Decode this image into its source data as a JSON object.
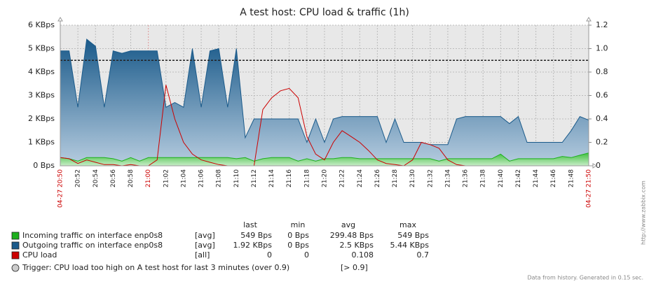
{
  "chart_data": {
    "type": "line",
    "title": "A test host: CPU load & traffic (1h)",
    "x": [
      "20:50",
      "20:51",
      "20:52",
      "20:53",
      "20:54",
      "20:55",
      "20:56",
      "20:57",
      "20:58",
      "20:59",
      "21:00",
      "21:01",
      "21:02",
      "21:03",
      "21:04",
      "21:05",
      "21:06",
      "21:07",
      "21:08",
      "21:09",
      "21:10",
      "21:11",
      "21:12",
      "21:13",
      "21:14",
      "21:15",
      "21:16",
      "21:17",
      "21:18",
      "21:19",
      "21:20",
      "21:21",
      "21:22",
      "21:23",
      "21:24",
      "21:25",
      "21:26",
      "21:27",
      "21:28",
      "21:29",
      "21:30",
      "21:31",
      "21:32",
      "21:33",
      "21:34",
      "21:35",
      "21:36",
      "21:37",
      "21:38",
      "21:39",
      "21:40",
      "21:41",
      "21:42",
      "21:43",
      "21:44",
      "21:45",
      "21:46",
      "21:47",
      "21:48",
      "21:49",
      "21:50"
    ],
    "xlim": [
      "20:50",
      "21:50"
    ],
    "xticks": [
      {
        "value": "20:50",
        "label": "04-27 20:50"
      },
      "20:52",
      "20:54",
      "20:56",
      "20:58",
      "21:00",
      "21:02",
      "21:04",
      "21:06",
      "21:08",
      "21:10",
      "21:12",
      "21:14",
      "21:16",
      "21:18",
      "21:20",
      "21:22",
      "21:24",
      "21:26",
      "21:28",
      "21:30",
      "21:32",
      "21:34",
      "21:36",
      "21:38",
      "21:40",
      "21:42",
      "21:44",
      "21:46",
      "21:48",
      {
        "value": "21:50",
        "label": "04-27 21:50"
      }
    ],
    "ylim": [
      0,
      6
    ],
    "yticks": [
      {
        "value": 0,
        "label": "0 Bps"
      },
      {
        "value": 1,
        "label": "1 KBps"
      },
      {
        "value": 2,
        "label": "2 KBps"
      },
      {
        "value": 3,
        "label": "3 KBps"
      },
      {
        "value": 4,
        "label": "4 KBps"
      },
      {
        "value": 5,
        "label": "5 KBps"
      },
      {
        "value": 6,
        "label": "6 KBps"
      }
    ],
    "y2lim": [
      0,
      1.2
    ],
    "y2ticks": [
      0,
      0.2,
      0.4,
      0.6,
      0.8,
      {
        "value": 1,
        "label": "1.0"
      },
      1.2
    ],
    "grid": true,
    "stats_header": [
      "last",
      "min",
      "avg",
      "max"
    ],
    "series": [
      {
        "name": "Incoming traffic on interface enp0s8",
        "color": "#1db01d",
        "style": "area",
        "func": "[avg]",
        "stats": [
          "549 Bps",
          "0 Bps",
          "299.48 Bps",
          "549 Bps"
        ],
        "values": [
          0.35,
          0.3,
          0.2,
          0.35,
          0.35,
          0.35,
          0.3,
          0.2,
          0.35,
          0.2,
          0.35,
          0.35,
          0.35,
          0.35,
          0.35,
          0.35,
          0.35,
          0.35,
          0.35,
          0.35,
          0.3,
          0.35,
          0.2,
          0.3,
          0.35,
          0.35,
          0.35,
          0.2,
          0.3,
          0.2,
          0.3,
          0.3,
          0.35,
          0.35,
          0.3,
          0.3,
          0.3,
          0.3,
          0.3,
          0.3,
          0.3,
          0.3,
          0.3,
          0.2,
          0.3,
          0.3,
          0.3,
          0.3,
          0.3,
          0.3,
          0.5,
          0.2,
          0.3,
          0.3,
          0.3,
          0.3,
          0.3,
          0.4,
          0.35,
          0.45,
          0.55
        ]
      },
      {
        "name": "Outgoing traffic on interface enp0s8",
        "color": "#1a5a8a",
        "style": "area",
        "func": "[avg]",
        "stats": [
          "1.92 KBps",
          "0 Bps",
          "2.5 KBps",
          "5.44 KBps"
        ],
        "values": [
          4.9,
          4.9,
          2.5,
          5.4,
          5.1,
          2.5,
          4.9,
          4.8,
          4.9,
          4.9,
          4.9,
          4.9,
          2.5,
          2.7,
          2.5,
          5.0,
          2.5,
          4.9,
          5.0,
          2.5,
          5.0,
          1.2,
          2.0,
          2.0,
          2.0,
          2.0,
          2.0,
          2.0,
          1.0,
          2.0,
          1.0,
          2.0,
          2.1,
          2.1,
          2.1,
          2.1,
          2.1,
          1.0,
          2.0,
          1.0,
          1.0,
          1.0,
          0.9,
          0.9,
          0.9,
          2.0,
          2.1,
          2.1,
          2.1,
          2.1,
          2.1,
          1.8,
          2.1,
          1.0,
          1.0,
          1.0,
          1.0,
          1.0,
          1.5,
          2.1,
          1.95
        ]
      },
      {
        "name": "CPU load",
        "color": "#cc0000",
        "style": "line",
        "axis": "y2",
        "func": "[all]",
        "stats": [
          "0",
          "0",
          "0.108",
          "0.7"
        ],
        "values": [
          0.07,
          0.06,
          0.02,
          0.05,
          0.03,
          0.01,
          0.01,
          0,
          0.01,
          0,
          0,
          0.05,
          0.69,
          0.4,
          0.2,
          0.1,
          0.05,
          0.03,
          0.01,
          0,
          0,
          0,
          0,
          0.48,
          0.58,
          0.64,
          0.66,
          0.58,
          0.25,
          0.1,
          0.05,
          0.2,
          0.3,
          0.25,
          0.2,
          0.13,
          0.05,
          0.02,
          0.01,
          0,
          0.05,
          0.2,
          0.18,
          0.15,
          0.05,
          0.01,
          0,
          0,
          0,
          0,
          0,
          0,
          0,
          0,
          0,
          0,
          0,
          0,
          0,
          0,
          0
        ]
      }
    ],
    "trigger": {
      "label": "Trigger: CPU load too high on A test host for last 3 minutes (over 0.9)",
      "condition": "[> 0.9]",
      "value": 0.9,
      "axis": "y2"
    },
    "footer": "Data from history. Generated in 0.15 sec.",
    "watermark": "http://www.zabbix.com"
  }
}
